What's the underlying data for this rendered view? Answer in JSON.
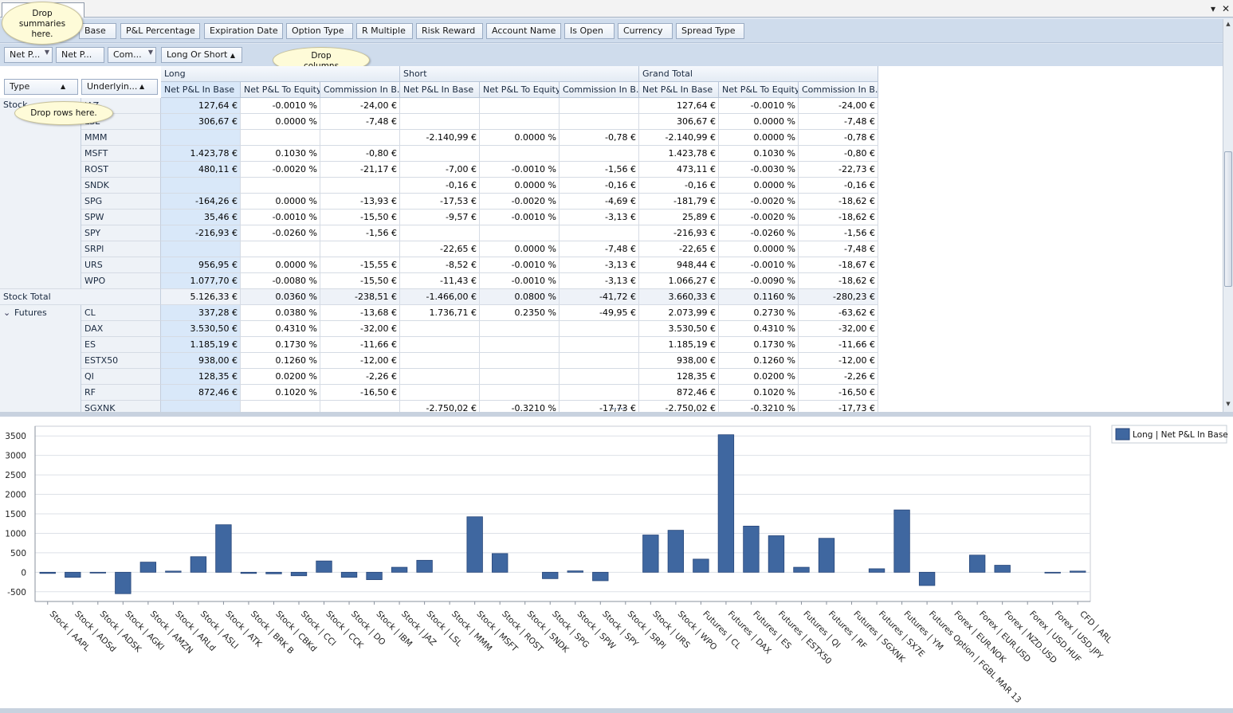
{
  "window": {
    "minimize_glyph": "▾",
    "close_glyph": "✕"
  },
  "filter_fields": [
    "Base",
    "P&L Percentage",
    "Expiration Date",
    "Option Type",
    "R Multiple",
    "Risk Reward",
    "Account Name",
    "Is Open",
    "Currency",
    "Spread Type"
  ],
  "data_fields": [
    "Net P...",
    "Net P...",
    "Com..."
  ],
  "column_field": {
    "label": "Long Or Short",
    "sort_glyph": "▲"
  },
  "row_fields": [
    {
      "label": "Type",
      "sort_glyph": "▲"
    },
    {
      "label": "Underlyin...",
      "sort_glyph": "▲"
    }
  ],
  "hints": {
    "summaries": "Drop summaries here.",
    "columns": "Drop columns here.",
    "rows": "Drop rows here."
  },
  "column_groups": [
    "Long",
    "Short",
    "Grand Total"
  ],
  "measure_headers": [
    "Net P&L In Base",
    "Net P&L To Equity",
    "Commission In B..."
  ],
  "rows": [
    {
      "type": "Stock",
      "sym": "JAZ",
      "v": [
        "127,64 €",
        "-0.0010 %",
        "-24,00 €",
        "",
        "",
        "",
        "127,64 €",
        "-0.0010 %",
        "-24,00 €"
      ]
    },
    {
      "type": "",
      "sym": "LSL",
      "v": [
        "306,67 €",
        "0.0000 %",
        "-7,48 €",
        "",
        "",
        "",
        "306,67 €",
        "0.0000 %",
        "-7,48 €"
      ]
    },
    {
      "type": "",
      "sym": "MMM",
      "v": [
        "",
        "",
        "",
        "-2.140,99 €",
        "0.0000 %",
        "-0,78 €",
        "-2.140,99 €",
        "0.0000 %",
        "-0,78 €"
      ]
    },
    {
      "type": "",
      "sym": "MSFT",
      "v": [
        "1.423,78 €",
        "0.1030 %",
        "-0,80 €",
        "",
        "",
        "",
        "1.423,78 €",
        "0.1030 %",
        "-0,80 €"
      ]
    },
    {
      "type": "",
      "sym": "ROST",
      "v": [
        "480,11 €",
        "-0.0020 %",
        "-21,17 €",
        "-7,00 €",
        "-0.0010 %",
        "-1,56 €",
        "473,11 €",
        "-0.0030 %",
        "-22,73 €"
      ]
    },
    {
      "type": "",
      "sym": "SNDK",
      "v": [
        "",
        "",
        "",
        "-0,16 €",
        "0.0000 %",
        "-0,16 €",
        "-0,16 €",
        "0.0000 %",
        "-0,16 €"
      ]
    },
    {
      "type": "",
      "sym": "SPG",
      "v": [
        "-164,26 €",
        "0.0000 %",
        "-13,93 €",
        "-17,53 €",
        "-0.0020 %",
        "-4,69 €",
        "-181,79 €",
        "-0.0020 %",
        "-18,62 €"
      ]
    },
    {
      "type": "",
      "sym": "SPW",
      "v": [
        "35,46 €",
        "-0.0010 %",
        "-15,50 €",
        "-9,57 €",
        "-0.0010 %",
        "-3,13 €",
        "25,89 €",
        "-0.0020 %",
        "-18,62 €"
      ]
    },
    {
      "type": "",
      "sym": "SPY",
      "v": [
        "-216,93 €",
        "-0.0260 %",
        "-1,56 €",
        "",
        "",
        "",
        "-216,93 €",
        "-0.0260 %",
        "-1,56 €"
      ]
    },
    {
      "type": "",
      "sym": "SRPl",
      "v": [
        "",
        "",
        "",
        "-22,65 €",
        "0.0000 %",
        "-7,48 €",
        "-22,65 €",
        "0.0000 %",
        "-7,48 €"
      ]
    },
    {
      "type": "",
      "sym": "URS",
      "v": [
        "956,95 €",
        "0.0000 %",
        "-15,55 €",
        "-8,52 €",
        "-0.0010 %",
        "-3,13 €",
        "948,44 €",
        "-0.0010 %",
        "-18,67 €"
      ]
    },
    {
      "type": "",
      "sym": "WPO",
      "v": [
        "1.077,70 €",
        "-0.0080 %",
        "-15,50 €",
        "-11,43 €",
        "-0.0010 %",
        "-3,13 €",
        "1.066,27 €",
        "-0.0090 %",
        "-18,62 €"
      ]
    },
    {
      "total": "Stock Total",
      "v": [
        "5.126,33 €",
        "0.0360 %",
        "-238,51 €",
        "-1.466,00 €",
        "0.0800 %",
        "-41,72 €",
        "3.660,33 €",
        "0.1160 %",
        "-280,23 €"
      ]
    },
    {
      "type": "Futures",
      "sym": "CL",
      "v": [
        "337,28 €",
        "0.0380 %",
        "-13,68 €",
        "1.736,71 €",
        "0.2350 %",
        "-49,95 €",
        "2.073,99 €",
        "0.2730 %",
        "-63,62 €"
      ]
    },
    {
      "type": "",
      "sym": "DAX",
      "v": [
        "3.530,50 €",
        "0.4310 %",
        "-32,00 €",
        "",
        "",
        "",
        "3.530,50 €",
        "0.4310 %",
        "-32,00 €"
      ]
    },
    {
      "type": "",
      "sym": "ES",
      "v": [
        "1.185,19 €",
        "0.1730 %",
        "-11,66 €",
        "",
        "",
        "",
        "1.185,19 €",
        "0.1730 %",
        "-11,66 €"
      ]
    },
    {
      "type": "",
      "sym": "ESTX50",
      "v": [
        "938,00 €",
        "0.1260 %",
        "-12,00 €",
        "",
        "",
        "",
        "938,00 €",
        "0.1260 %",
        "-12,00 €"
      ]
    },
    {
      "type": "",
      "sym": "QI",
      "v": [
        "128,35 €",
        "0.0200 %",
        "-2,26 €",
        "",
        "",
        "",
        "128,35 €",
        "0.0200 %",
        "-2,26 €"
      ]
    },
    {
      "type": "",
      "sym": "RF",
      "v": [
        "872,46 €",
        "0.1020 %",
        "-16,50 €",
        "",
        "",
        "",
        "872,46 €",
        "0.1020 %",
        "-16,50 €"
      ]
    },
    {
      "type": "",
      "sym": "SGXNK",
      "v": [
        "",
        "",
        "",
        "-2.750,02 €",
        "-0.3210 %",
        "-17,73 €",
        "-2.750,02 €",
        "-0.3210 %",
        "-17,73 €"
      ]
    }
  ],
  "expand_glyph": "⌄",
  "colors": {
    "bar": "#3f67a0",
    "bar_edge": "#27467a",
    "grid": "#dde1e7",
    "selected_col": "#d9e8f9"
  },
  "chart_data": {
    "type": "bar",
    "legend": "Long | Net P&L In Base",
    "legend_position": "top-right",
    "grid": true,
    "ylim": [
      -750,
      3750
    ],
    "yticks": [
      3500,
      3000,
      2500,
      2000,
      1500,
      1000,
      500,
      0,
      -500
    ],
    "categories": [
      "Stock | AAPL",
      "Stock | ADSd",
      "Stock | ADSK",
      "Stock | AGKI",
      "Stock | AMZN",
      "Stock | ARLd",
      "Stock | ASLI",
      "Stock | ATK",
      "Stock | BRK B",
      "Stock | CBKd",
      "Stock | CCI",
      "Stock | CCK",
      "Stock | DO",
      "Stock | IBM",
      "Stock | JAZ",
      "Stock | LSL",
      "Stock | MMM",
      "Stock | MSFT",
      "Stock | ROST",
      "Stock | SNDK",
      "Stock | SPG",
      "Stock | SPW",
      "Stock | SPY",
      "Stock | SRPl",
      "Stock | URS",
      "Stock | WPO",
      "Futures | CL",
      "Futures | DAX",
      "Futures | ES",
      "Futures | ESTX50",
      "Futures | QI",
      "Futures | RF",
      "Futures | SGXNK",
      "Futures | SX7E",
      "Futures | YM",
      "Futures Option | FGBL MAR 13",
      "Forex | EUR.NOK",
      "Forex | EUR.USD",
      "Forex | NZD.USD",
      "Forex | USD.HUF",
      "Forex | USD.JPY",
      "CFD | ARL"
    ],
    "values": [
      -30,
      -130,
      -20,
      -550,
      260,
      30,
      400,
      1220,
      -30,
      -40,
      -90,
      290,
      -130,
      -190,
      128,
      307,
      0,
      1424,
      480,
      0,
      -164,
      35,
      -217,
      0,
      957,
      1078,
      337,
      3531,
      1185,
      938,
      128,
      872,
      0,
      90,
      1600,
      -340,
      0,
      440,
      180,
      0,
      -20,
      30
    ]
  }
}
